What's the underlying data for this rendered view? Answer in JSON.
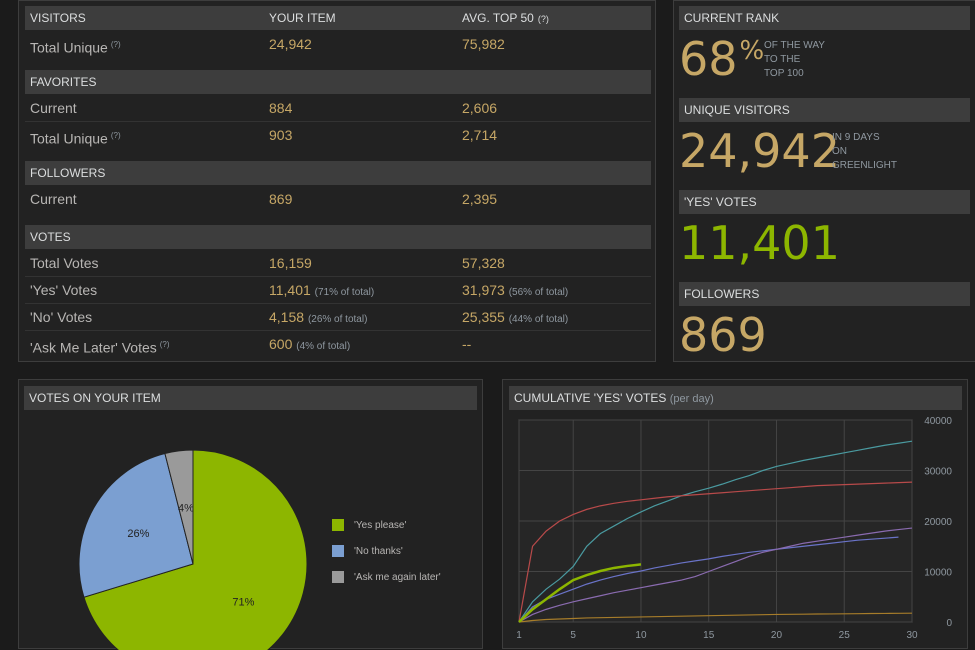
{
  "stats_table": {
    "visitors": {
      "header": "VISITORS",
      "col_your_item": "YOUR ITEM",
      "col_avg": "AVG. TOP 50",
      "rows": [
        {
          "label": "Total Unique",
          "your": "24,942",
          "avg": "75,982"
        }
      ]
    },
    "favorites": {
      "header": "FAVORITES",
      "rows": [
        {
          "label": "Current",
          "your": "884",
          "avg": "2,606"
        },
        {
          "label": "Total Unique",
          "your": "903",
          "avg": "2,714"
        }
      ]
    },
    "followers": {
      "header": "FOLLOWERS",
      "rows": [
        {
          "label": "Current",
          "your": "869",
          "avg": "2,395"
        }
      ]
    },
    "votes": {
      "header": "VOTES",
      "rows": [
        {
          "label": "Total Votes",
          "your": "16,159",
          "your_pct": "",
          "avg": "57,328",
          "avg_pct": ""
        },
        {
          "label": "'Yes' Votes",
          "your": "11,401",
          "your_pct": "(71% of total)",
          "avg": "31,973",
          "avg_pct": "(56% of total)"
        },
        {
          "label": "'No' Votes",
          "your": "4,158",
          "your_pct": "(26% of total)",
          "avg": "25,355",
          "avg_pct": "(44% of total)"
        },
        {
          "label": "'Ask Me Later' Votes",
          "your": "600",
          "your_pct": "(4% of total)",
          "avg": "--",
          "avg_pct": ""
        }
      ]
    },
    "help_marker": "(?)"
  },
  "side": {
    "rank": {
      "header": "CURRENT RANK",
      "value": "68",
      "unit": "%",
      "desc1": "OF THE WAY",
      "desc2": "TO THE",
      "desc3": "TOP 100"
    },
    "unique": {
      "header": "UNIQUE VISITORS",
      "value": "24,942",
      "desc1": "IN 9 DAYS",
      "desc2": "ON",
      "desc3": "GREENLIGHT"
    },
    "yes": {
      "header": "'YES' VOTES",
      "value": "11,401"
    },
    "followers": {
      "header": "FOLLOWERS",
      "value": "869"
    }
  },
  "pie_panel": {
    "header": "VOTES ON YOUR ITEM",
    "legend": [
      "'Yes please'",
      "'No thanks'",
      "'Ask me again later'"
    ]
  },
  "line_panel": {
    "header": "CUMULATIVE 'YES' VOTES",
    "header_sub": "(per day)"
  },
  "colors": {
    "yes": "#8db600",
    "no": "#7b9fd1",
    "later": "#9a9a9a",
    "value": "#c6a766",
    "green_big": "#8db600"
  },
  "chart_data": [
    {
      "type": "pie",
      "title": "VOTES ON YOUR ITEM",
      "slices": [
        {
          "label": "'Yes please'",
          "value": 71,
          "display": "71%"
        },
        {
          "label": "'No thanks'",
          "value": 26,
          "display": "26%"
        },
        {
          "label": "'Ask me again later'",
          "value": 4,
          "display": "4%"
        }
      ]
    },
    {
      "type": "line",
      "title": "CUMULATIVE 'YES' VOTES",
      "subtitle": "(per day)",
      "x_ticks": [
        1,
        5,
        10,
        15,
        20,
        25,
        30
      ],
      "y_ticks": [
        0,
        10000,
        20000,
        30000,
        40000
      ],
      "xlim": [
        1,
        30
      ],
      "ylim": [
        0,
        40000
      ],
      "grid": true,
      "series": [
        {
          "color": "#4a9aa0",
          "x": [
            1,
            2,
            3,
            4,
            5,
            6,
            7,
            8,
            9,
            10,
            11,
            12,
            13,
            14,
            15,
            16,
            17,
            18,
            19,
            20,
            21,
            22,
            23,
            24,
            25,
            26,
            27,
            28,
            29,
            30
          ],
          "values": [
            0,
            4000,
            6500,
            8500,
            11000,
            15000,
            17500,
            19000,
            20500,
            21800,
            23000,
            24000,
            25000,
            25800,
            26500,
            27300,
            28200,
            29000,
            30000,
            30800,
            31400,
            32000,
            32500,
            33000,
            33500,
            34000,
            34500,
            35000,
            35400,
            35800
          ]
        },
        {
          "color": "#b84a4a",
          "x": [
            1,
            2,
            3,
            4,
            5,
            6,
            7,
            8,
            9,
            10,
            11,
            12,
            13,
            14,
            15,
            16,
            17,
            18,
            19,
            20,
            21,
            22,
            23,
            24,
            25,
            26,
            27,
            28,
            29,
            30
          ],
          "values": [
            0,
            15000,
            18000,
            20000,
            21300,
            22300,
            23000,
            23500,
            23900,
            24200,
            24500,
            24800,
            25000,
            25200,
            25400,
            25600,
            25800,
            26000,
            26200,
            26400,
            26600,
            26800,
            27000,
            27100,
            27200,
            27300,
            27400,
            27500,
            27600,
            27700
          ]
        },
        {
          "color": "#6a73c8",
          "x": [
            1,
            2,
            3,
            4,
            5,
            6,
            7,
            8,
            9,
            10,
            11,
            12,
            13,
            14,
            15,
            16,
            17,
            18,
            19,
            20,
            21,
            22,
            23,
            24,
            25,
            26,
            27,
            28,
            29
          ],
          "values": [
            0,
            3000,
            4500,
            5500,
            6500,
            7500,
            8300,
            9000,
            9600,
            10100,
            10700,
            11200,
            11700,
            12100,
            12500,
            13000,
            13400,
            13800,
            14100,
            14400,
            14700,
            15000,
            15300,
            15600,
            15900,
            16200,
            16400,
            16600,
            16800
          ]
        },
        {
          "color": "#8a6bb0",
          "x": [
            1,
            2,
            3,
            4,
            5,
            6,
            7,
            8,
            9,
            10,
            11,
            12,
            13,
            14,
            15,
            16,
            17,
            18,
            19,
            20,
            21,
            22,
            23,
            24,
            25,
            26,
            27,
            28,
            29,
            30
          ],
          "values": [
            0,
            1500,
            2500,
            3300,
            4000,
            4600,
            5200,
            5800,
            6300,
            6800,
            7300,
            7800,
            8300,
            9000,
            10000,
            11000,
            12000,
            13000,
            13800,
            14400,
            15000,
            15600,
            16000,
            16400,
            16800,
            17200,
            17600,
            18000,
            18300,
            18600
          ]
        },
        {
          "color": "#a67c2a",
          "x": [
            1,
            2,
            3,
            4,
            5,
            6,
            7,
            8,
            9,
            10,
            11,
            12,
            13,
            14,
            15,
            16,
            17,
            18,
            19,
            20,
            21,
            22,
            23,
            24,
            25,
            26,
            27,
            28,
            29,
            30
          ],
          "values": [
            0,
            300,
            500,
            600,
            700,
            800,
            850,
            900,
            950,
            1000,
            1050,
            1100,
            1150,
            1200,
            1250,
            1300,
            1350,
            1400,
            1450,
            1500,
            1520,
            1550,
            1580,
            1600,
            1620,
            1650,
            1680,
            1700,
            1720,
            1750
          ]
        },
        {
          "color": "#8db600",
          "x": [
            1,
            2,
            3,
            4,
            5,
            6,
            7,
            8,
            9,
            10
          ],
          "values": [
            0,
            2500,
            4500,
            6500,
            8300,
            9300,
            10100,
            10700,
            11100,
            11401
          ]
        }
      ]
    }
  ]
}
